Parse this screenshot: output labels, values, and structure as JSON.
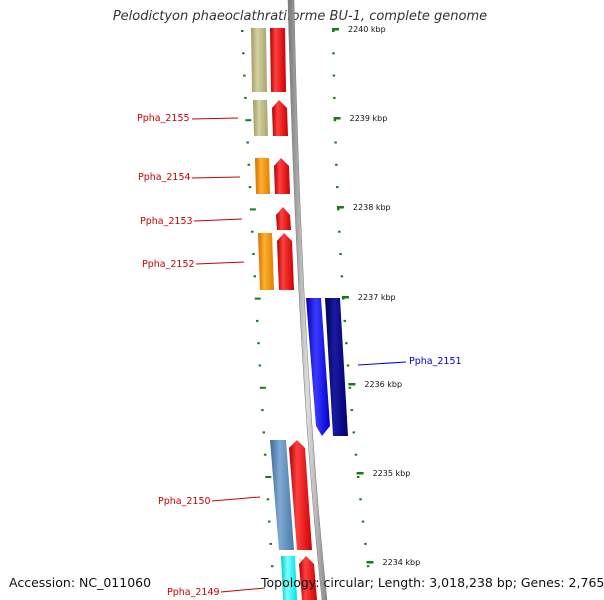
{
  "title": "Pelodictyon phaeoclathratiforme BU-1, complete genome",
  "accession": "Accession: NC_011060",
  "summary": "Topology: circular; Length: 3,018,238 bp; Genes: 2,765",
  "ticks": [
    {
      "label": "2240 kbp"
    },
    {
      "label": "2239 kbp"
    },
    {
      "label": "2238 kbp"
    },
    {
      "label": "2237 kbp"
    },
    {
      "label": "2236 kbp"
    },
    {
      "label": "2235 kbp"
    },
    {
      "label": "2234 kbp"
    }
  ],
  "genes": [
    {
      "name": "Ppha_2155",
      "strand": "left",
      "color": "#cc0000"
    },
    {
      "name": "Ppha_2154",
      "strand": "left",
      "color": "#cc0000"
    },
    {
      "name": "Ppha_2153",
      "strand": "left",
      "color": "#cc0000"
    },
    {
      "name": "Ppha_2152",
      "strand": "left",
      "color": "#cc0000"
    },
    {
      "name": "Ppha_2151",
      "strand": "right",
      "color": "#0000cc"
    },
    {
      "name": "Ppha_2150",
      "strand": "left",
      "color": "#cc0000"
    },
    {
      "name": "Ppha_2149",
      "strand": "left",
      "color": "#cc0000"
    }
  ],
  "colors": {
    "forward_cds": "#ff1a1a",
    "reverse_cds": "#1a1aff",
    "reverse_cds_dark": "#0a0a80",
    "tick": "#1a7a1a",
    "backbone": "#999999"
  }
}
